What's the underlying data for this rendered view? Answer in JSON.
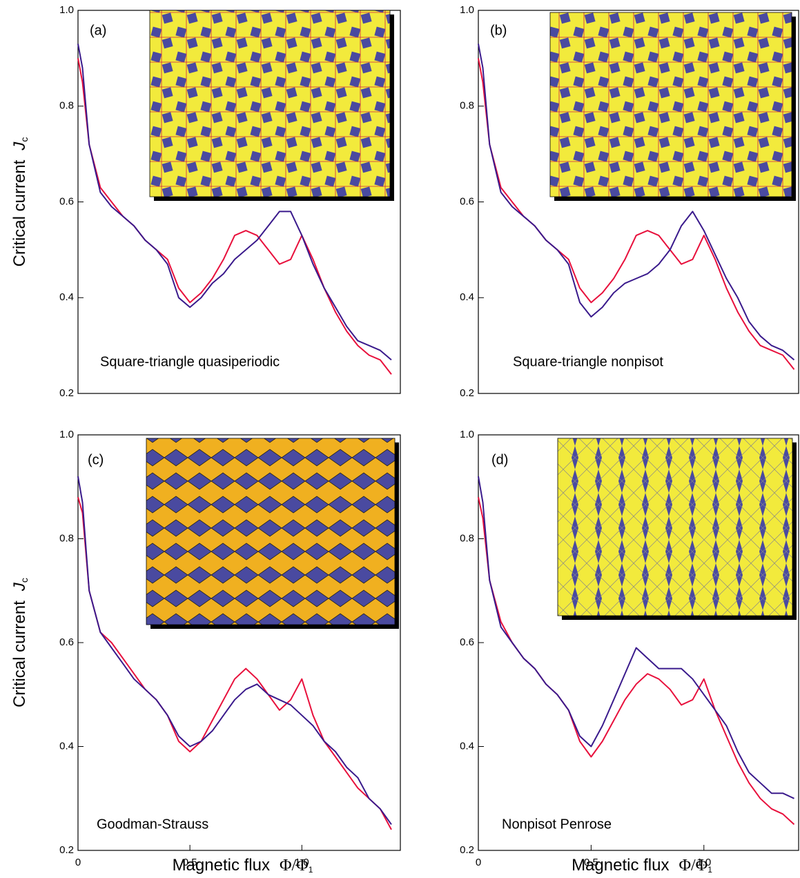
{
  "chart_data": [
    {
      "type": "line",
      "label": "(a)",
      "annotation": "Square-triangle quasiperiodic",
      "ylabel": "Critical current",
      "ylabel_symbol": "J",
      "ylabel_subscript": "c",
      "xlim": [
        0,
        1.44
      ],
      "ylim": [
        0.2,
        1
      ],
      "yticks": [
        0.2,
        0.4,
        0.6,
        0.8,
        {
          "value": 1,
          "label": "1.0"
        }
      ],
      "x": [
        0,
        0.02,
        0.05,
        0.1,
        0.15,
        0.2,
        0.25,
        0.3,
        0.35,
        0.4,
        0.45,
        0.5,
        0.55,
        0.6,
        0.65,
        0.7,
        0.75,
        0.8,
        0.85,
        0.9,
        0.95,
        1,
        1.05,
        1.1,
        1.15,
        1.2,
        1.25,
        1.3,
        1.35,
        1.4
      ],
      "series": [
        {
          "color": "#e8103c",
          "values": [
            0.9,
            0.85,
            0.72,
            0.63,
            0.6,
            0.57,
            0.55,
            0.52,
            0.5,
            0.48,
            0.42,
            0.39,
            0.41,
            0.44,
            0.48,
            0.53,
            0.54,
            0.53,
            0.5,
            0.47,
            0.48,
            0.53,
            0.48,
            0.42,
            0.37,
            0.33,
            0.3,
            0.28,
            0.27,
            0.24
          ]
        },
        {
          "color": "#3a1a8c",
          "values": [
            0.93,
            0.88,
            0.72,
            0.62,
            0.59,
            0.57,
            0.55,
            0.52,
            0.5,
            0.47,
            0.4,
            0.38,
            0.4,
            0.43,
            0.45,
            0.48,
            0.5,
            0.52,
            0.55,
            0.58,
            0.58,
            0.53,
            0.47,
            0.42,
            0.38,
            0.34,
            0.31,
            0.3,
            0.29,
            0.27
          ]
        }
      ]
    },
    {
      "type": "line",
      "label": "(b)",
      "annotation": "Square-triangle nonpisot",
      "xlim": [
        0,
        1.42
      ],
      "ylim": [
        0.2,
        1
      ],
      "yticks": [
        0.2,
        0.4,
        0.6,
        0.8,
        {
          "value": 1,
          "label": "1.0"
        }
      ],
      "x": [
        0,
        0.02,
        0.05,
        0.1,
        0.15,
        0.2,
        0.25,
        0.3,
        0.35,
        0.4,
        0.45,
        0.5,
        0.55,
        0.6,
        0.65,
        0.7,
        0.75,
        0.8,
        0.85,
        0.9,
        0.95,
        1,
        1.05,
        1.1,
        1.15,
        1.2,
        1.25,
        1.3,
        1.35,
        1.4
      ],
      "series": [
        {
          "color": "#e8103c",
          "values": [
            0.9,
            0.85,
            0.72,
            0.63,
            0.6,
            0.57,
            0.55,
            0.52,
            0.5,
            0.48,
            0.42,
            0.39,
            0.41,
            0.44,
            0.48,
            0.53,
            0.54,
            0.53,
            0.5,
            0.47,
            0.48,
            0.53,
            0.48,
            0.42,
            0.37,
            0.33,
            0.3,
            0.29,
            0.28,
            0.25
          ]
        },
        {
          "color": "#3a1a8c",
          "values": [
            0.93,
            0.88,
            0.72,
            0.62,
            0.59,
            0.57,
            0.55,
            0.52,
            0.5,
            0.47,
            0.39,
            0.36,
            0.38,
            0.41,
            0.43,
            0.44,
            0.45,
            0.47,
            0.5,
            0.55,
            0.58,
            0.54,
            0.49,
            0.44,
            0.4,
            0.35,
            0.32,
            0.3,
            0.29,
            0.27
          ]
        }
      ]
    },
    {
      "type": "line",
      "label": "(c)",
      "annotation": "Goodman-Strauss",
      "ylabel": "Critical current",
      "ylabel_symbol": "J",
      "ylabel_subscript": "c",
      "xlabel": "Magnetic flux",
      "xlabel_symbol": "Φ/Φ",
      "xlabel_subscript": "1",
      "xlim": [
        0,
        1.44
      ],
      "ylim": [
        0.2,
        1
      ],
      "yticks": [
        0.2,
        0.4,
        0.6,
        0.8,
        {
          "value": 1,
          "label": "1.0"
        }
      ],
      "xticks": [
        0,
        0.5,
        {
          "value": 1,
          "label": "1.0"
        }
      ],
      "x": [
        0,
        0.02,
        0.05,
        0.1,
        0.15,
        0.2,
        0.25,
        0.3,
        0.35,
        0.4,
        0.45,
        0.5,
        0.55,
        0.6,
        0.65,
        0.7,
        0.75,
        0.8,
        0.85,
        0.9,
        0.95,
        1,
        1.05,
        1.1,
        1.15,
        1.2,
        1.25,
        1.3,
        1.35,
        1.4
      ],
      "series": [
        {
          "color": "#e8103c",
          "values": [
            0.88,
            0.85,
            0.7,
            0.62,
            0.6,
            0.57,
            0.54,
            0.51,
            0.49,
            0.46,
            0.41,
            0.39,
            0.41,
            0.45,
            0.49,
            0.53,
            0.55,
            0.53,
            0.5,
            0.47,
            0.49,
            0.53,
            0.46,
            0.41,
            0.38,
            0.35,
            0.32,
            0.3,
            0.28,
            0.24
          ]
        },
        {
          "color": "#3a1a8c",
          "values": [
            0.92,
            0.87,
            0.7,
            0.62,
            0.59,
            0.56,
            0.53,
            0.51,
            0.49,
            0.46,
            0.42,
            0.4,
            0.41,
            0.43,
            0.46,
            0.49,
            0.51,
            0.52,
            0.5,
            0.49,
            0.48,
            0.46,
            0.44,
            0.41,
            0.39,
            0.36,
            0.34,
            0.3,
            0.28,
            0.25
          ]
        }
      ]
    },
    {
      "type": "line",
      "label": "(d)",
      "annotation": "Nonpisot Penrose",
      "xlabel": "Magnetic flux",
      "xlabel_symbol": "Φ/Φ",
      "xlabel_subscript": "1",
      "xlim": [
        0,
        1.42
      ],
      "ylim": [
        0.2,
        1
      ],
      "yticks": [
        0.2,
        0.4,
        0.6,
        0.8,
        {
          "value": 1,
          "label": "1.0"
        }
      ],
      "xticks": [
        0,
        0.5,
        {
          "value": 1,
          "label": "1.0"
        }
      ],
      "x": [
        0,
        0.02,
        0.05,
        0.1,
        0.15,
        0.2,
        0.25,
        0.3,
        0.35,
        0.4,
        0.45,
        0.5,
        0.55,
        0.6,
        0.65,
        0.7,
        0.75,
        0.8,
        0.85,
        0.9,
        0.95,
        1,
        1.05,
        1.1,
        1.15,
        1.2,
        1.25,
        1.3,
        1.35,
        1.4
      ],
      "series": [
        {
          "color": "#e8103c",
          "values": [
            0.88,
            0.84,
            0.72,
            0.64,
            0.6,
            0.57,
            0.55,
            0.52,
            0.5,
            0.47,
            0.41,
            0.38,
            0.41,
            0.45,
            0.49,
            0.52,
            0.54,
            0.53,
            0.51,
            0.48,
            0.49,
            0.53,
            0.47,
            0.42,
            0.37,
            0.33,
            0.3,
            0.28,
            0.27,
            0.25
          ]
        },
        {
          "color": "#3a1a8c",
          "values": [
            0.92,
            0.87,
            0.72,
            0.63,
            0.6,
            0.57,
            0.55,
            0.52,
            0.5,
            0.47,
            0.42,
            0.4,
            0.44,
            0.49,
            0.54,
            0.59,
            0.57,
            0.55,
            0.55,
            0.55,
            0.53,
            0.5,
            0.47,
            0.44,
            0.39,
            0.35,
            0.33,
            0.31,
            0.31,
            0.3
          ]
        }
      ]
    }
  ]
}
